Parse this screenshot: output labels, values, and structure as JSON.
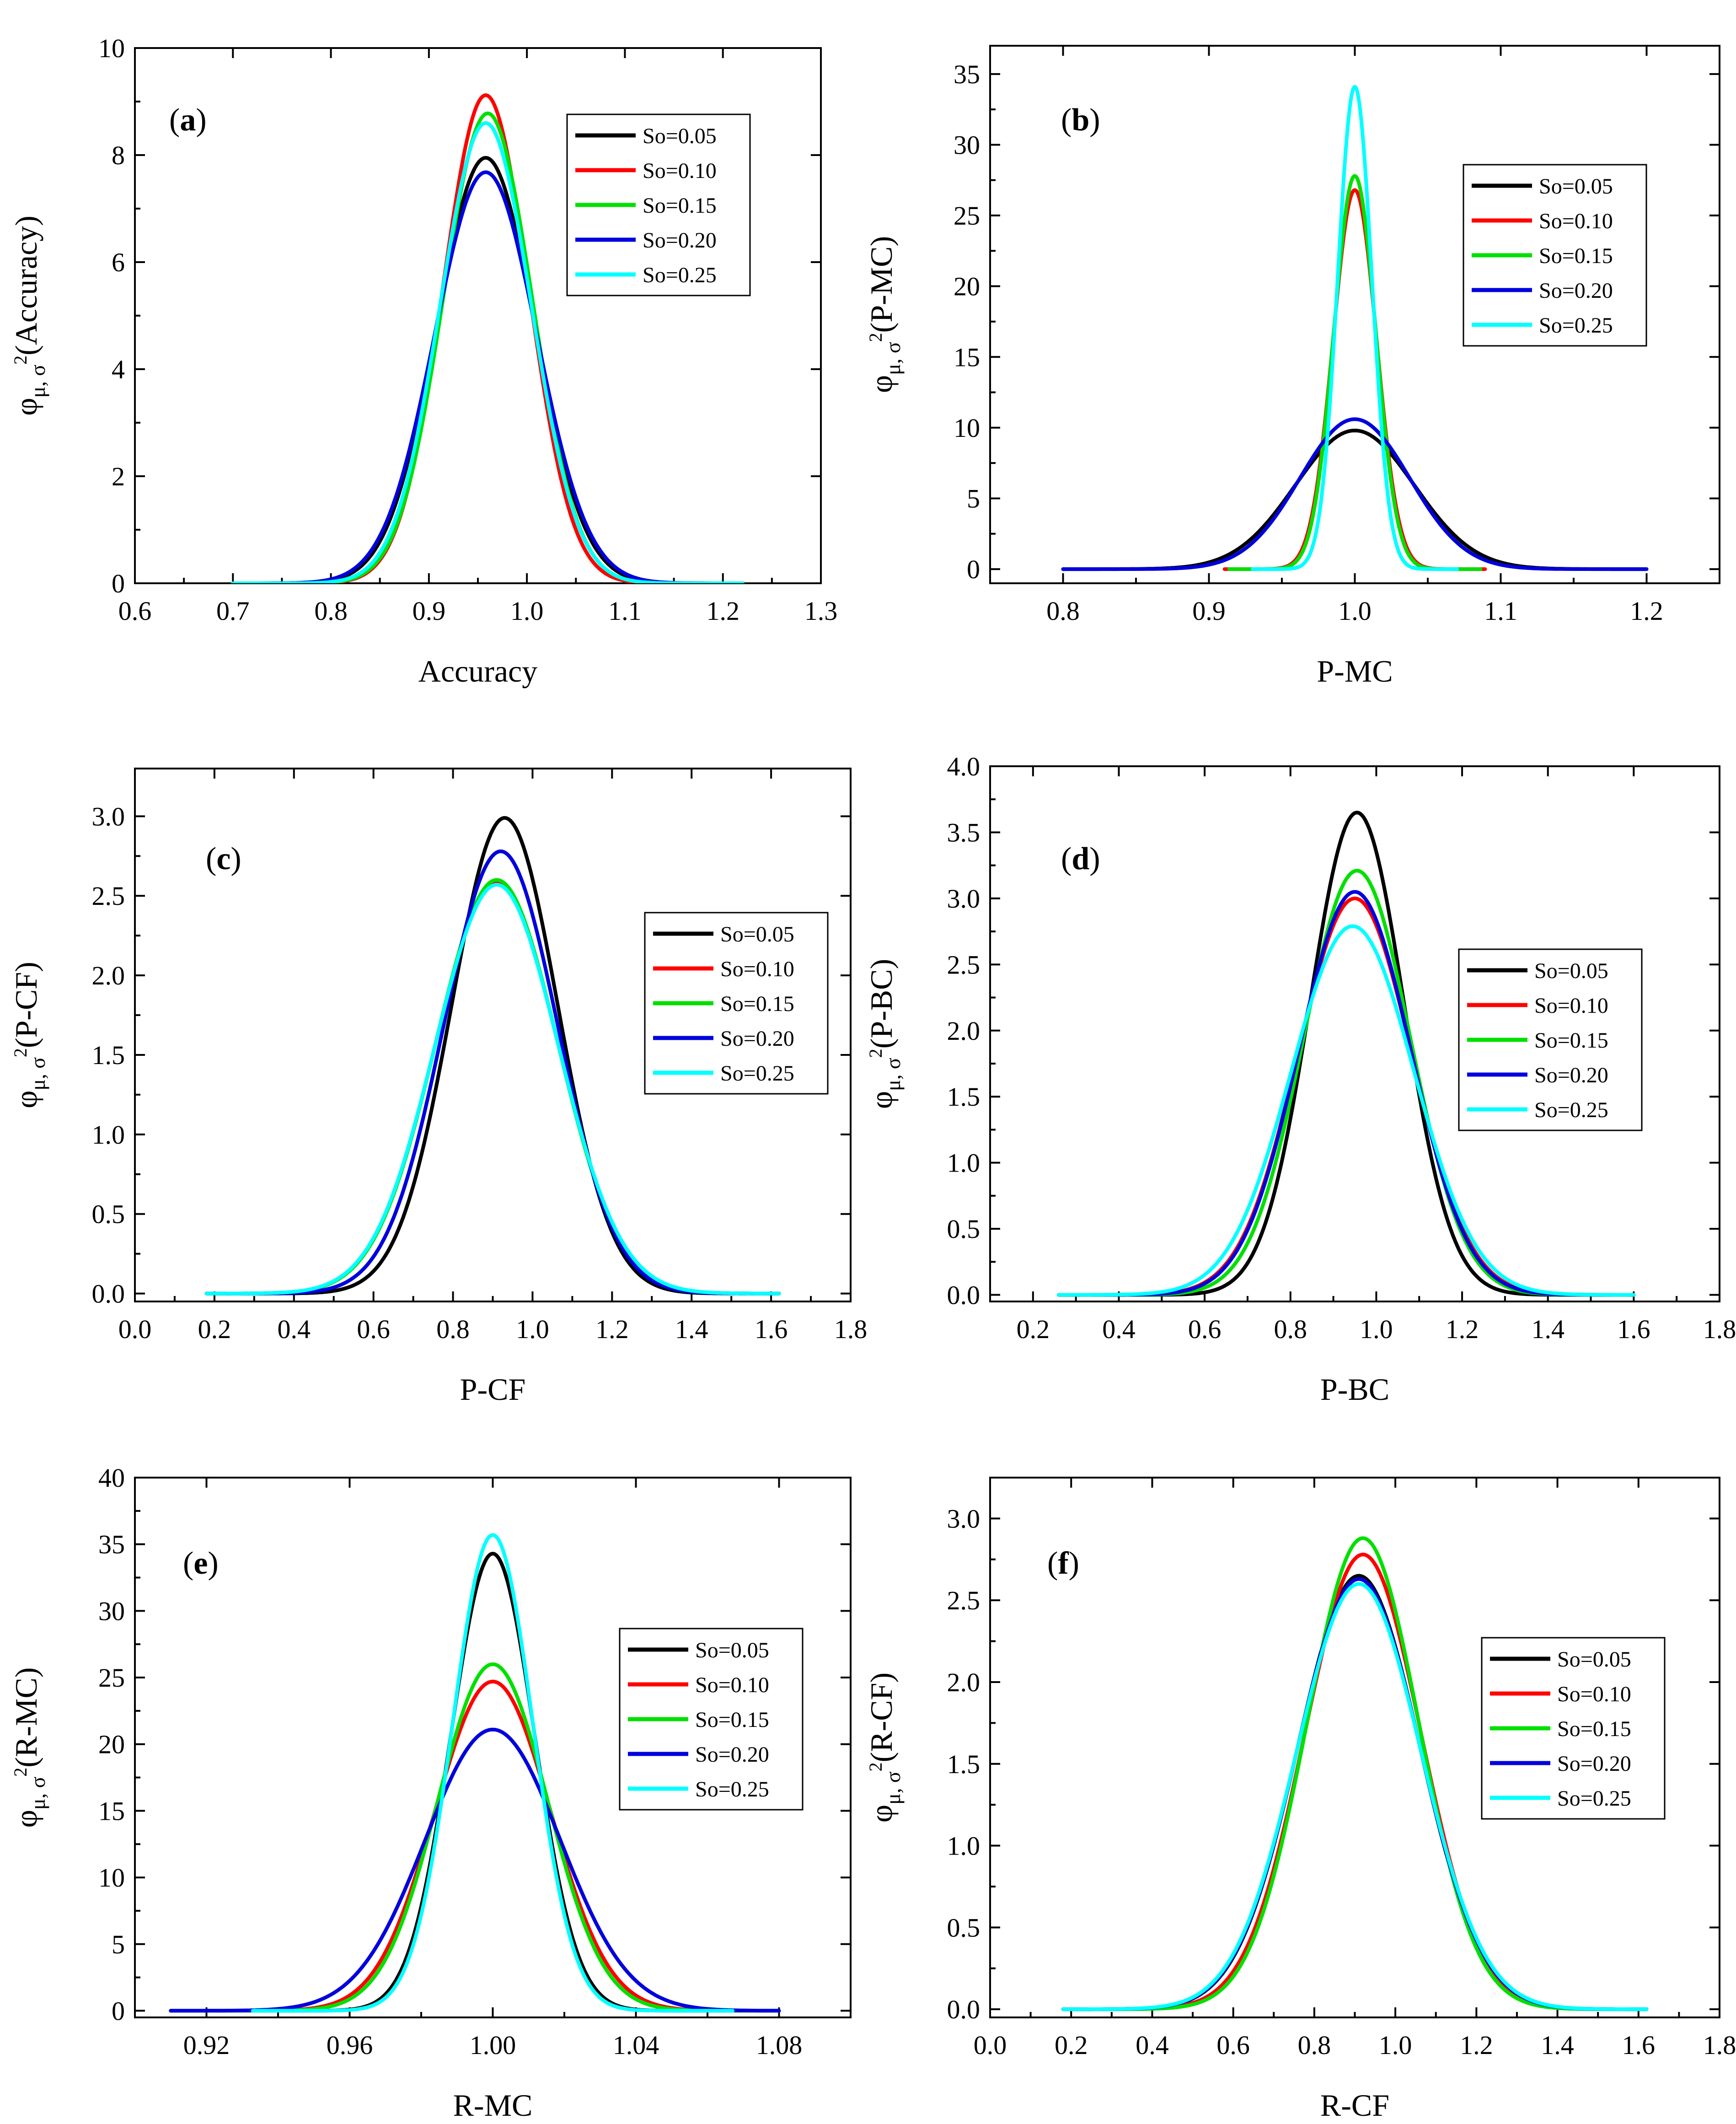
{
  "figure": {
    "series_names": [
      "So=0.05",
      "So=0.10",
      "So=0.15",
      "So=0.20",
      "So=0.25"
    ],
    "series_colors": [
      "#000000",
      "#ff0000",
      "#00e000",
      "#0000dd",
      "#00ffff"
    ]
  },
  "chart_data": [
    {
      "type": "line",
      "tag_open": "(",
      "tag_letter": "a",
      "tag_close": ")",
      "xlabel": "Accuracy",
      "ylabel_prefix": "φ",
      "ylabel_sub": "μ, σ",
      "ylabel_sup": "2",
      "ylabel_arg": "(Accuracy)",
      "xlim": [
        0.6,
        1.3
      ],
      "ylim": [
        0,
        10
      ],
      "xticks": [
        "0.6",
        "0.7",
        "0.8",
        "0.9",
        "1.0",
        "1.1",
        "1.2",
        "1.3"
      ],
      "yticks": [
        "0",
        "2",
        "4",
        "6",
        "8",
        "10"
      ],
      "x_range": [
        0.7,
        1.22
      ],
      "legend_position": "upper-right",
      "series": [
        {
          "name": "So=0.05",
          "mean": 0.958,
          "peak": 7.95
        },
        {
          "name": "So=0.10",
          "mean": 0.958,
          "peak": 9.12
        },
        {
          "name": "So=0.15",
          "mean": 0.96,
          "peak": 8.78
        },
        {
          "name": "So=0.20",
          "mean": 0.958,
          "peak": 7.68
        },
        {
          "name": "So=0.25",
          "mean": 0.958,
          "peak": 8.6
        }
      ]
    },
    {
      "type": "line",
      "tag_open": "(",
      "tag_letter": "b",
      "tag_close": ")",
      "xlabel": "P-MC",
      "ylabel_prefix": "φ",
      "ylabel_sub": "μ, σ",
      "ylabel_sup": "2",
      "ylabel_arg": "(P-MC)",
      "xlim": [
        0.75,
        1.25
      ],
      "ylim": [
        -1,
        37
      ],
      "xticks": [
        "0.8",
        "0.9",
        "1.0",
        "1.1",
        "1.2"
      ],
      "yticks": [
        "0",
        "5",
        "10",
        "15",
        "20",
        "25",
        "30",
        "35"
      ],
      "x_range": [
        0.8,
        1.2
      ],
      "legend_position": "right",
      "series": [
        {
          "name": "So=0.05",
          "mean": 1.0,
          "peak": 9.8
        },
        {
          "name": "So=0.10",
          "mean": 1.0,
          "peak": 26.8
        },
        {
          "name": "So=0.15",
          "mean": 1.0,
          "peak": 27.8
        },
        {
          "name": "So=0.20",
          "mean": 1.0,
          "peak": 10.6
        },
        {
          "name": "So=0.25",
          "mean": 1.0,
          "peak": 34.1
        }
      ]
    },
    {
      "type": "line",
      "tag_open": "(",
      "tag_letter": "c",
      "tag_close": ")",
      "xlabel": "P-CF",
      "ylabel_prefix": "φ",
      "ylabel_sub": "μ, σ",
      "ylabel_sup": "2",
      "ylabel_arg": "(P-CF)",
      "xlim": [
        0.0,
        1.8
      ],
      "ylim": [
        -0.05,
        3.3
      ],
      "xticks": [
        "0.0",
        "0.2",
        "0.4",
        "0.6",
        "0.8",
        "1.0",
        "1.2",
        "1.4",
        "1.6",
        "1.8"
      ],
      "yticks": [
        "0.0",
        "0.5",
        "1.0",
        "1.5",
        "2.0",
        "2.5",
        "3.0"
      ],
      "x_range": [
        0.18,
        1.62
      ],
      "legend_position": "right",
      "series": [
        {
          "name": "So=0.05",
          "mean": 0.93,
          "peak": 2.99
        },
        {
          "name": "So=0.10",
          "mean": 0.91,
          "peak": 2.58
        },
        {
          "name": "So=0.15",
          "mean": 0.91,
          "peak": 2.6
        },
        {
          "name": "So=0.20",
          "mean": 0.92,
          "peak": 2.78
        },
        {
          "name": "So=0.25",
          "mean": 0.91,
          "peak": 2.57
        }
      ]
    },
    {
      "type": "line",
      "tag_open": "(",
      "tag_letter": "d",
      "tag_close": ")",
      "xlabel": "P-BC",
      "ylabel_prefix": "φ",
      "ylabel_sub": "μ, σ",
      "ylabel_sup": "2",
      "ylabel_arg": "(P-BC)",
      "xlim": [
        0.1,
        1.8
      ],
      "ylim": [
        -0.05,
        4.0
      ],
      "xticks": [
        "0.2",
        "0.4",
        "0.6",
        "0.8",
        "1.0",
        "1.2",
        "1.4",
        "1.6",
        "1.8"
      ],
      "yticks": [
        "0.0",
        "0.5",
        "1.0",
        "1.5",
        "2.0",
        "2.5",
        "3.0",
        "3.5",
        "4.0"
      ],
      "x_range": [
        0.26,
        1.6
      ],
      "legend_position": "right",
      "series": [
        {
          "name": "So=0.05",
          "mean": 0.955,
          "peak": 3.65
        },
        {
          "name": "So=0.10",
          "mean": 0.95,
          "peak": 3.0
        },
        {
          "name": "So=0.15",
          "mean": 0.955,
          "peak": 3.21
        },
        {
          "name": "So=0.20",
          "mean": 0.95,
          "peak": 3.05
        },
        {
          "name": "So=0.25",
          "mean": 0.945,
          "peak": 2.79
        }
      ]
    },
    {
      "type": "line",
      "tag_open": "(",
      "tag_letter": "e",
      "tag_close": ")",
      "xlabel": "R-MC",
      "ylabel_prefix": "φ",
      "ylabel_sub": "μ, σ",
      "ylabel_sup": "2",
      "ylabel_arg": "(R-MC)",
      "xlim": [
        0.9,
        1.1
      ],
      "ylim": [
        -0.5,
        40
      ],
      "xticks": [
        "0.92",
        "0.96",
        "1.00",
        "1.04",
        "1.08"
      ],
      "yticks": [
        "0",
        "5",
        "10",
        "15",
        "20",
        "25",
        "30",
        "35",
        "40"
      ],
      "x_range": [
        0.91,
        1.08
      ],
      "legend_position": "right",
      "series": [
        {
          "name": "So=0.05",
          "mean": 1.0,
          "peak": 34.3
        },
        {
          "name": "So=0.10",
          "mean": 1.0,
          "peak": 24.7
        },
        {
          "name": "So=0.15",
          "mean": 1.0,
          "peak": 26.0
        },
        {
          "name": "So=0.20",
          "mean": 1.0,
          "peak": 21.1
        },
        {
          "name": "So=0.25",
          "mean": 1.0,
          "peak": 35.7
        }
      ]
    },
    {
      "type": "line",
      "tag_open": "(",
      "tag_letter": "f",
      "tag_close": ")",
      "xlabel": "R-CF",
      "ylabel_prefix": "φ",
      "ylabel_sub": "μ, σ",
      "ylabel_sup": "2",
      "ylabel_arg": "(R-CF)",
      "xlim": [
        0.0,
        1.8
      ],
      "ylim": [
        -0.05,
        3.25
      ],
      "xticks": [
        "0.0",
        "0.2",
        "0.4",
        "0.6",
        "0.8",
        "1.0",
        "1.2",
        "1.4",
        "1.6",
        "1.8"
      ],
      "yticks": [
        "0.0",
        "0.5",
        "1.0",
        "1.5",
        "2.0",
        "2.5",
        "3.0"
      ],
      "x_range": [
        0.18,
        1.62
      ],
      "legend_position": "right",
      "series": [
        {
          "name": "So=0.05",
          "mean": 0.91,
          "peak": 2.65
        },
        {
          "name": "So=0.10",
          "mean": 0.92,
          "peak": 2.78
        },
        {
          "name": "So=0.15",
          "mean": 0.92,
          "peak": 2.88
        },
        {
          "name": "So=0.20",
          "mean": 0.91,
          "peak": 2.63
        },
        {
          "name": "So=0.25",
          "mean": 0.91,
          "peak": 2.6
        }
      ]
    }
  ]
}
